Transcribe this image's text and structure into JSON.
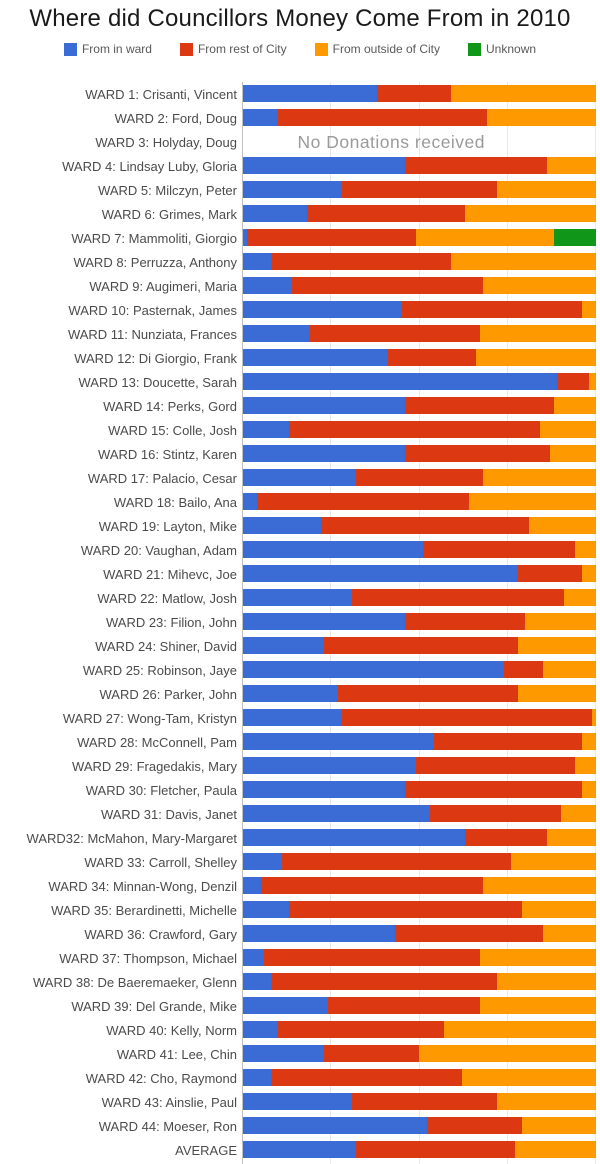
{
  "title": "Where did Councillors Money Come From in 2010",
  "no_data_text": "No Donations received",
  "colors": {
    "in_ward": "#3B6BD4",
    "rest_of_city": "#DC3912",
    "outside_city": "#FF9900",
    "unknown": "#109618",
    "gridline": "#e9e9e9",
    "axis_line": "#c0c0c0",
    "title_text": "#1a1a1a",
    "label_text": "#4b4b4b",
    "no_data_text_color": "#9a9a9a"
  },
  "legend": [
    {
      "key": "in_ward",
      "label": "From in ward"
    },
    {
      "key": "rest_of_city",
      "label": "From rest of City"
    },
    {
      "key": "outside_city",
      "label": "From outside of City"
    },
    {
      "key": "unknown",
      "label": "Unknown"
    }
  ],
  "chart_data": {
    "type": "bar",
    "stacked": true,
    "orientation": "horizontal",
    "unit": "percent of total donations",
    "xlim": [
      0,
      100
    ],
    "grid": true,
    "legend_position": "top",
    "series_names": [
      "From in ward",
      "From rest of City",
      "From outside of City",
      "Unknown"
    ],
    "rows": [
      {
        "label": "WARD 1: Crisanti, Vincent",
        "values": [
          38,
          21,
          41,
          0
        ]
      },
      {
        "label": "WARD 2: Ford, Doug",
        "values": [
          10,
          59,
          31,
          0
        ]
      },
      {
        "label": "WARD 3: Holyday, Doug",
        "values": null
      },
      {
        "label": "WARD 4: Lindsay Luby, Gloria",
        "values": [
          46,
          40,
          14,
          0
        ]
      },
      {
        "label": "WARD 5: Milczyn, Peter",
        "values": [
          28,
          44,
          28,
          0
        ]
      },
      {
        "label": "WARD 6: Grimes, Mark",
        "values": [
          18,
          45,
          37,
          0
        ]
      },
      {
        "label": "WARD 7: Mammoliti, Giorgio",
        "values": [
          1,
          48,
          39,
          12
        ]
      },
      {
        "label": "WARD 8: Perruzza, Anthony",
        "values": [
          8,
          51,
          41,
          0
        ]
      },
      {
        "label": "WARD 9: Augimeri, Maria",
        "values": [
          14,
          54,
          32,
          0
        ]
      },
      {
        "label": "WARD 10: Pasternak, James",
        "values": [
          45,
          51,
          4,
          0
        ]
      },
      {
        "label": "WARD 11: Nunziata, Frances",
        "values": [
          19,
          48,
          33,
          0
        ]
      },
      {
        "label": "WARD 12: Di Giorgio, Frank",
        "values": [
          41,
          25,
          34,
          0
        ]
      },
      {
        "label": "WARD 13: Doucette, Sarah",
        "values": [
          89,
          9,
          2,
          0
        ]
      },
      {
        "label": "WARD 14: Perks, Gord",
        "values": [
          46,
          42,
          12,
          0
        ]
      },
      {
        "label": "WARD 15: Colle, Josh",
        "values": [
          13,
          71,
          16,
          0
        ]
      },
      {
        "label": "WARD 16: Stintz, Karen",
        "values": [
          46,
          41,
          13,
          0
        ]
      },
      {
        "label": "WARD 17: Palacio, Cesar",
        "values": [
          32,
          36,
          32,
          0
        ]
      },
      {
        "label": "WARD 18: Bailo, Ana",
        "values": [
          4,
          60,
          36,
          0
        ]
      },
      {
        "label": "WARD 19: Layton, Mike",
        "values": [
          22,
          59,
          19,
          0
        ]
      },
      {
        "label": "WARD 20: Vaughan, Adam",
        "values": [
          51,
          43,
          6,
          0
        ]
      },
      {
        "label": "WARD 21: Mihevc, Joe",
        "values": [
          78,
          18,
          4,
          0
        ]
      },
      {
        "label": "WARD 22: Matlow, Josh",
        "values": [
          31,
          60,
          9,
          0
        ]
      },
      {
        "label": "WARD 23: Filion, John",
        "values": [
          46,
          34,
          20,
          0
        ]
      },
      {
        "label": "WARD 24: Shiner, David",
        "values": [
          23,
          55,
          22,
          0
        ]
      },
      {
        "label": "WARD 25: Robinson, Jaye",
        "values": [
          74,
          11,
          15,
          0
        ]
      },
      {
        "label": "WARD 26: Parker, John",
        "values": [
          27,
          51,
          22,
          0
        ]
      },
      {
        "label": "WARD 27: Wong-Tam, Kristyn",
        "values": [
          28,
          71,
          1,
          0
        ]
      },
      {
        "label": "WARD 28: McConnell, Pam",
        "values": [
          54,
          42,
          4,
          0
        ]
      },
      {
        "label": "WARD 29: Fragedakis, Mary",
        "values": [
          49,
          45,
          6,
          0
        ]
      },
      {
        "label": "WARD 30: Fletcher, Paula",
        "values": [
          46,
          50,
          4,
          0
        ]
      },
      {
        "label": "WARD 31: Davis, Janet",
        "values": [
          53,
          37,
          10,
          0
        ]
      },
      {
        "label": "WARD32: McMahon, Mary-Margaret",
        "values": [
          63,
          23,
          14,
          0
        ]
      },
      {
        "label": "WARD 33: Carroll, Shelley",
        "values": [
          11,
          65,
          24,
          0
        ]
      },
      {
        "label": "WARD 34: Minnan-Wong, Denzil",
        "values": [
          5,
          63,
          32,
          0
        ]
      },
      {
        "label": "WARD 35: Berardinetti, Michelle",
        "values": [
          13,
          66,
          21,
          0
        ]
      },
      {
        "label": "WARD 36: Crawford, Gary",
        "values": [
          43,
          42,
          15,
          0
        ]
      },
      {
        "label": "WARD 37: Thompson, Michael",
        "values": [
          6,
          61,
          33,
          0
        ]
      },
      {
        "label": "WARD 38: De Baeremaeker, Glenn",
        "values": [
          8,
          64,
          28,
          0
        ]
      },
      {
        "label": "WARD 39: Del Grande, Mike",
        "values": [
          24,
          43,
          33,
          0
        ]
      },
      {
        "label": "WARD 40: Kelly, Norm",
        "values": [
          10,
          47,
          43,
          0
        ]
      },
      {
        "label": "WARD 41: Lee, Chin",
        "values": [
          23,
          27,
          50,
          0
        ]
      },
      {
        "label": "WARD 42: Cho, Raymond",
        "values": [
          8,
          54,
          38,
          0
        ]
      },
      {
        "label": "WARD 43: Ainslie, Paul",
        "values": [
          31,
          41,
          28,
          0
        ]
      },
      {
        "label": "WARD 44: Moeser, Ron",
        "values": [
          52,
          27,
          21,
          0
        ]
      },
      {
        "label": "AVERAGE",
        "values": [
          32,
          45,
          23,
          0
        ]
      }
    ]
  }
}
